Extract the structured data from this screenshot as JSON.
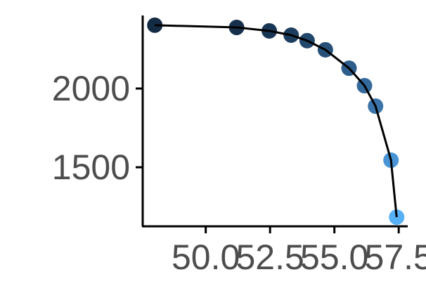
{
  "chart_data": {
    "type": "scatter",
    "x": [
      48.02,
      51.2,
      52.47,
      53.32,
      53.94,
      54.65,
      55.57,
      56.17,
      56.6,
      57.2,
      57.42
    ],
    "values": [
      2402,
      2388,
      2366,
      2339,
      2304,
      2246,
      2129,
      2018,
      1888,
      1545,
      1183
    ],
    "colors": [
      "#132b43",
      "#16304b",
      "#183654",
      "#1d3e5f",
      "#21476b",
      "#275078",
      "#2e5e8b",
      "#34699b",
      "#3a74aa",
      "#4894d5",
      "#56b1f7"
    ],
    "line": true,
    "line_color": "#000000",
    "xlim": [
      47.55,
      57.85
    ],
    "ylim": [
      1125,
      2464
    ],
    "xticks": [
      {
        "value": 50,
        "label": "50.0"
      },
      {
        "value": 52.5,
        "label": "52.5"
      },
      {
        "value": 55,
        "label": "55.0"
      },
      {
        "value": 57.5,
        "label": "57.5"
      }
    ],
    "yticks": [
      1500,
      2000
    ]
  }
}
